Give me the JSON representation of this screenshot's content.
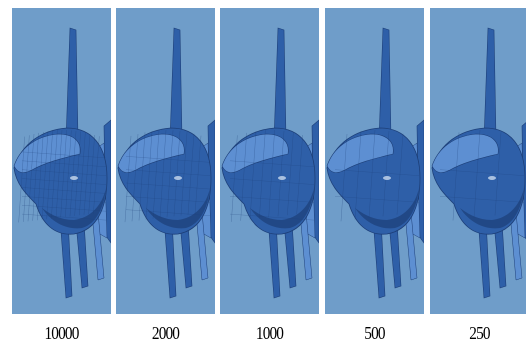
{
  "figure": {
    "panels": [
      {
        "label": "10000",
        "model": "fish-mesh-icon"
      },
      {
        "label": "2000",
        "model": "fish-mesh-icon"
      },
      {
        "label": "1000",
        "model": "fish-mesh-icon"
      },
      {
        "label": "500",
        "model": "fish-mesh-icon"
      },
      {
        "label": "250",
        "model": "fish-mesh-icon"
      }
    ],
    "colors": {
      "background": "#6f9dc9",
      "mesh": "#2e5fa8",
      "mesh_dark": "#1d3f78",
      "mesh_light": "#5d8fd2"
    }
  }
}
